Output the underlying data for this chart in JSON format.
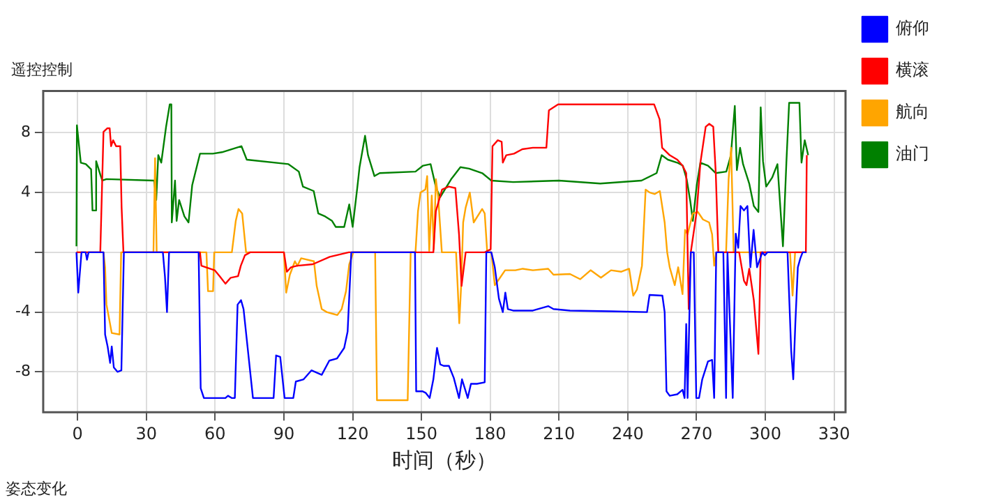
{
  "chart_data": {
    "type": "line",
    "title": "遥控控制",
    "xlabel": "时间（秒）",
    "annotations": [
      "姿态变化"
    ],
    "xlim": [
      -15,
      335
    ],
    "xticks": [
      0,
      30,
      60,
      90,
      120,
      150,
      180,
      210,
      240,
      270,
      300,
      330
    ],
    "ylim": [
      -10.7,
      10.8
    ],
    "yticks": [
      {
        "value": -8,
        "label": "-8"
      },
      {
        "value": -4,
        "label": "-4"
      },
      {
        "value": 0,
        "label": null
      },
      4,
      8
    ],
    "grid": true,
    "legend": "right",
    "marker": "none",
    "line_style": "solid",
    "series": [
      {
        "name": "俯仰",
        "color": "#0000ff",
        "x": [
          -0.5,
          0.3,
          1.7,
          3.5,
          4.1,
          4.8,
          11.3,
          12,
          13.1,
          14.2,
          14.9,
          15.8,
          17.4,
          19.1,
          20.2,
          37.2,
          38.1,
          39,
          39.9,
          52.8,
          53.7,
          55.1,
          64.5,
          65.6,
          67.2,
          68.6,
          69.8,
          71.3,
          72.4,
          76.5,
          85.5,
          86.6,
          88.4,
          90.3,
          94.1,
          95.2,
          98.6,
          102,
          106.5,
          109.8,
          113.2,
          116.3,
          117.8,
          119.4,
          147.2,
          147.7,
          150.4,
          151.8,
          153.6,
          155.2,
          156.8,
          158.2,
          159.7,
          162,
          164.1,
          166.4,
          167.7,
          169.3,
          170.2,
          171.6,
          174.2,
          177.6,
          178.3,
          180.5,
          182,
          183.8,
          185.5,
          186.6,
          187.7,
          190,
          198.6,
          205.3,
          207.6,
          214.8,
          232.7,
          248.4,
          249.5,
          255.1,
          256.1,
          256.9,
          258.3,
          261.6,
          263.9,
          264.8,
          265.5,
          266.1,
          267.5,
          268.8,
          269.9,
          271.1,
          272.5,
          275,
          276.8,
          277.7,
          278.6,
          281.7,
          282.9,
          283.5,
          284.4,
          285.8,
          287.1,
          288.2,
          289.2,
          290.7,
          292.2,
          293.5,
          294.9,
          296.4,
          298.7,
          299.8,
          300.9,
          309.7,
          311.3,
          312.2,
          313.1,
          314.2,
          315.3,
          316.3,
          317.9
        ],
        "values": [
          0,
          -2.7,
          0,
          0,
          -0.5,
          0,
          0,
          -5.5,
          -6.3,
          -7.4,
          -6.3,
          -7.7,
          -8,
          -7.9,
          0,
          0,
          -1.6,
          -4,
          0,
          0,
          -9.1,
          -9.75,
          -9.75,
          -9.6,
          -9.75,
          -9.75,
          -3.5,
          -3.2,
          -3.8,
          -9.75,
          -9.75,
          -6.9,
          -7,
          -9.75,
          -9.75,
          -8.65,
          -8.5,
          -7.9,
          -8.2,
          -7.25,
          -7.1,
          -6.4,
          -5.3,
          0,
          0,
          -9.3,
          -9.3,
          -9.4,
          -9.75,
          -8.5,
          -6.4,
          -7.5,
          -7.6,
          -7.6,
          -8.4,
          -9.75,
          -8.5,
          -9.3,
          -9.75,
          -8.8,
          -8.8,
          -8.7,
          0,
          0,
          -1,
          -3.1,
          -4,
          -2.7,
          -3.8,
          -3.9,
          -3.9,
          -3.6,
          -3.8,
          -3.9,
          -3.95,
          -4,
          -2.85,
          -2.9,
          -4,
          -9.3,
          -9.6,
          -9.5,
          -9.2,
          -9.75,
          -4.8,
          -9.75,
          0,
          0,
          -9.75,
          -9.75,
          -8.5,
          -7.3,
          -7.2,
          -9.75,
          0,
          0,
          -9.75,
          0,
          -4,
          -9.75,
          1.25,
          0.3,
          3.1,
          2.8,
          3.1,
          -1,
          1.5,
          -1,
          0,
          -0.2,
          0,
          0,
          -6.6,
          -8.5,
          -4.8,
          -1,
          -0.4,
          0,
          0
        ]
      },
      {
        "name": "横滚",
        "color": "#ff0000",
        "x": [
          -0.5,
          9.9,
          11.3,
          13,
          14,
          14.6,
          15.5,
          16.8,
          18.6,
          19.2,
          20,
          53.4,
          54,
          56,
          59.8,
          62,
          64.5,
          66.8,
          70,
          71.2,
          73,
          75.3,
          90,
          91.3,
          93.1,
          95.8,
          102.6,
          110,
          118.3,
          155.2,
          156.3,
          159,
          161.9,
          164.8,
          166.4,
          167.5,
          169.3,
          177.6,
          180.2,
          181,
          183.3,
          185,
          185.5,
          187,
          190.4,
          194,
          198.6,
          204.5,
          205.6,
          209.6,
          251.5,
          253.9,
          255,
          258.3,
          261.6,
          263.9,
          265.5,
          266.6,
          267.5,
          270.1,
          271.7,
          274,
          275.5,
          277.3,
          278.4,
          279.5,
          288.6,
          290.7,
          291.8,
          293,
          295,
          297,
          298,
          317.7,
          318.1
        ],
        "values": [
          0,
          0,
          8.06,
          8.3,
          8.3,
          7.1,
          7.5,
          7.1,
          7.1,
          3,
          0,
          0,
          -0.9,
          -1,
          -1.2,
          -1.6,
          -2.1,
          -1.7,
          -1.6,
          -0.9,
          -0.2,
          0,
          0,
          -1.3,
          -1,
          -0.9,
          -0.8,
          -0.3,
          0,
          0,
          2.75,
          4.2,
          4.4,
          4.3,
          1.2,
          -2.25,
          0,
          0,
          0.2,
          7.1,
          7.5,
          7.4,
          6,
          6.5,
          6.6,
          6.9,
          7,
          7,
          9.5,
          9.9,
          9.9,
          8.9,
          7,
          6.5,
          6.2,
          5.8,
          5.3,
          -3.8,
          0,
          2.75,
          6,
          8.4,
          8.6,
          8.4,
          5.3,
          0,
          0,
          -1.9,
          -2.2,
          -1.1,
          -3.2,
          -6.8,
          0,
          0,
          6.5
        ]
      },
      {
        "name": "航向",
        "color": "#ffa500",
        "x": [
          -0.5,
          11.3,
          12,
          12.6,
          14.9,
          18.3,
          19,
          33.1,
          33.8,
          34.3,
          34.5,
          56.2,
          56.9,
          59.1,
          59.6,
          67.3,
          69,
          70.2,
          71.8,
          73.5,
          90,
          91,
          92.6,
          94.8,
          95.9,
          97.5,
          103.1,
          104.3,
          106.5,
          108.7,
          111,
          113.3,
          115.2,
          117.1,
          118.5,
          120.3,
          129.8,
          130.6,
          144,
          145.3,
          147.4,
          148.5,
          149.6,
          151.7,
          152.5,
          153.4,
          154.5,
          155.4,
          156.3,
          157.3,
          158.9,
          165.1,
          165.9,
          166.5,
          167.4,
          168.2,
          169.3,
          171.1,
          172.8,
          176.5,
          177.6,
          178.7,
          180.5,
          182,
          184.3,
          186.5,
          191,
          194.2,
          198.6,
          205.3,
          207.6,
          214.8,
          219.3,
          223.8,
          228.3,
          232.7,
          237.2,
          240.6,
          242.4,
          244,
          246.2,
          247.8,
          249.6,
          251.8,
          254,
          256.1,
          257.2,
          258.3,
          260.5,
          262,
          263.9,
          265,
          266.1,
          268.4,
          270.6,
          272.8,
          275.5,
          276.8,
          277.7,
          278.6,
          282.9,
          284,
          285.1,
          286.2,
          310.8,
          311.9,
          313,
          317.5
        ],
        "values": [
          0,
          0,
          -1,
          -3.5,
          -5.4,
          -5.5,
          0,
          0,
          6.3,
          6.3,
          0,
          0,
          -2.6,
          -2.6,
          0,
          0,
          2.1,
          2.9,
          2.6,
          0,
          0,
          -2.7,
          -1.5,
          -0.6,
          -0.9,
          -0.4,
          -0.6,
          -2.25,
          -3.8,
          -4,
          -4.1,
          -4.2,
          -3.8,
          -2.6,
          -0.8,
          0,
          0,
          -9.9,
          -9.9,
          0,
          0,
          2.75,
          4,
          4.2,
          5.1,
          0.1,
          3.8,
          0.2,
          4.9,
          3.7,
          0,
          0,
          -2.6,
          -4.75,
          -2,
          2,
          3,
          4,
          2,
          2.9,
          2.6,
          0,
          0,
          -2.2,
          -1.7,
          -1.2,
          -1.2,
          -1.1,
          -1.2,
          -1.1,
          -1.5,
          -1.45,
          -1.8,
          -1.2,
          -1.7,
          -1.2,
          -1.3,
          -1.1,
          -2.9,
          -2.5,
          -0.9,
          4.2,
          4,
          3.9,
          4.1,
          2,
          0,
          -1,
          -2.2,
          -1,
          -2.8,
          1.5,
          1.2,
          2.6,
          2.7,
          2.2,
          2,
          1.2,
          -0.9,
          0,
          0,
          4.9,
          7,
          0,
          0,
          -2.9,
          0,
          0
        ]
      },
      {
        "name": "油门",
        "color": "#008000",
        "x": [
          -0.5,
          -0.3,
          1.4,
          3.6,
          5.9,
          6.5,
          7.7,
          8.1,
          9.9,
          10.8,
          12.6,
          33.4,
          34.3,
          35.2,
          36.5,
          38.6,
          40.2,
          40.9,
          41.1,
          42.5,
          43.2,
          44.3,
          46.6,
          48.4,
          50,
          53.4,
          59,
          63,
          71.5,
          73.8,
          92,
          96.5,
          98.3,
          103,
          105,
          108,
          111,
          112.6,
          116.3,
          118.5,
          120,
          122,
          123,
          125.4,
          126.7,
          129.5,
          131.8,
          147.4,
          150.7,
          154,
          156.4,
          158.2,
          163,
          167,
          170.8,
          176.5,
          180.5,
          190,
          210,
          228,
          246,
          252.6,
          254.8,
          257.5,
          261.6,
          264,
          265.7,
          267.3,
          268.4,
          270.1,
          271.7,
          275,
          278.4,
          283,
          285,
          286.7,
          287.6,
          289,
          290.3,
          293,
          295,
          297,
          298,
          299,
          300.4,
          303,
          305.3,
          307.7,
          309.2,
          310.4,
          314.9,
          315.8,
          317.2,
          318.7
        ],
        "values": [
          0.4,
          8.5,
          6,
          5.9,
          5.55,
          2.8,
          2.8,
          6.1,
          5.2,
          4.8,
          4.9,
          4.8,
          3.5,
          6.5,
          6,
          8.4,
          9.9,
          9.9,
          2,
          4.8,
          2.1,
          3.5,
          2.4,
          2,
          4.5,
          6.6,
          6.6,
          6.7,
          7.1,
          6.2,
          5.9,
          5.4,
          4.4,
          4.1,
          2.6,
          2.4,
          2.1,
          1.7,
          1.7,
          3.2,
          1.7,
          4.3,
          5.7,
          7.8,
          6.5,
          5.1,
          5.3,
          5.4,
          5.8,
          5.9,
          4.3,
          3.7,
          4.9,
          5.7,
          5.6,
          5.3,
          4.8,
          4.7,
          4.8,
          4.6,
          4.8,
          5.3,
          6.5,
          6.2,
          6,
          5.8,
          4.9,
          3.4,
          2.1,
          4.5,
          6,
          5.8,
          5.3,
          5.4,
          6.5,
          9.8,
          5.5,
          7,
          5.9,
          4.6,
          3.1,
          2.7,
          9.7,
          6.1,
          4.4,
          5,
          5.9,
          0.4,
          6,
          10,
          10,
          6,
          7.5,
          6.5
        ]
      }
    ]
  }
}
